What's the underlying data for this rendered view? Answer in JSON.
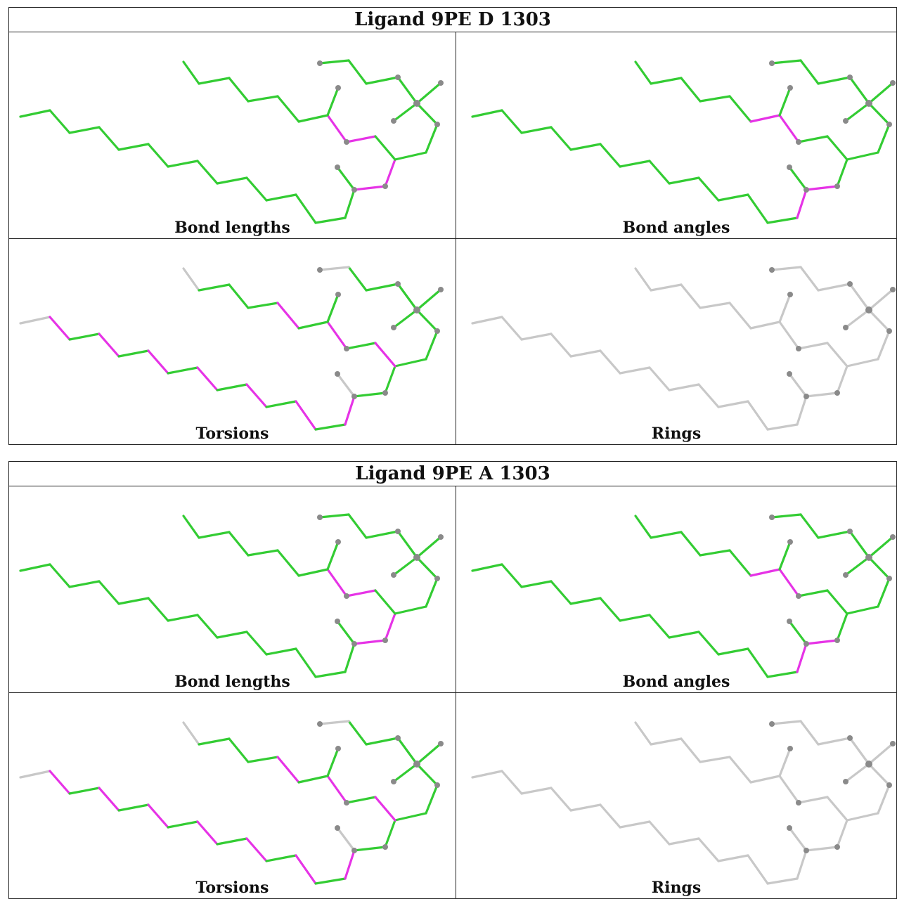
{
  "figure": {
    "ligands": [
      {
        "title": "Ligand 9PE D 1303",
        "panels": [
          "Bond lengths",
          "Bond angles",
          "Torsions",
          "Rings"
        ]
      },
      {
        "title": "Ligand 9PE A 1303",
        "panels": [
          "Bond lengths",
          "Bond angles",
          "Torsions",
          "Rings"
        ]
      }
    ],
    "colors": {
      "ok": "#33cc33",
      "outlier": "#e633e6",
      "not_assessed": "#c8c8c8",
      "atom": "#8a8a8a",
      "border": "#222222"
    }
  }
}
